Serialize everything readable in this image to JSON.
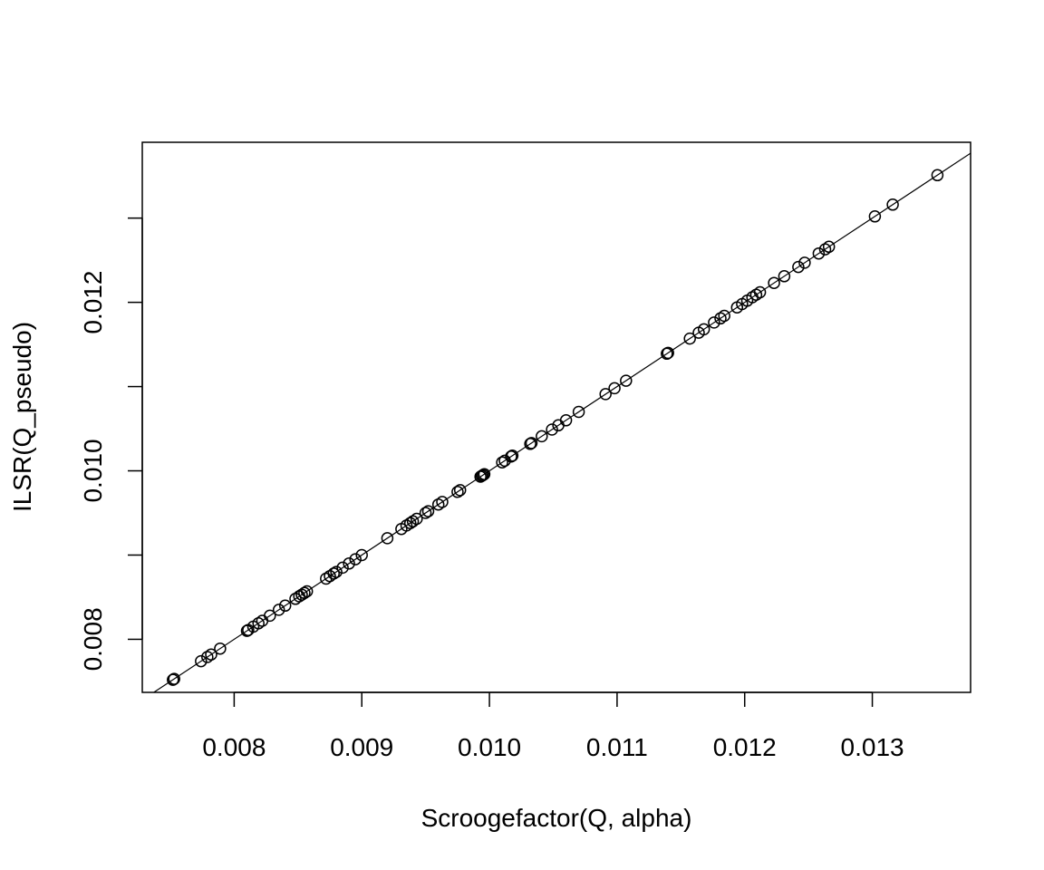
{
  "chart_data": {
    "type": "scatter",
    "title": "",
    "xlabel": "Scroogefactor(Q, alpha)",
    "ylabel": "ILSR(Q_pseudo)",
    "xlim": [
      0.00728,
      0.01377
    ],
    "ylim": [
      0.00737,
      0.0139
    ],
    "xticks": [
      0.008,
      0.009,
      0.01,
      0.011,
      0.012,
      0.013
    ],
    "xtick_labels": [
      "0.008",
      "0.009",
      "0.010",
      "0.011",
      "0.012",
      "0.013"
    ],
    "yticks": [
      0.008,
      0.009,
      0.01,
      0.011,
      0.012,
      0.013
    ],
    "ytick_labels": [
      "0.008",
      "",
      "0.010",
      "",
      "0.012",
      ""
    ],
    "reference_line": "y = x",
    "grid": false,
    "legend": "none",
    "marker": "open-circle",
    "points": [
      [
        0.00752,
        0.00752
      ],
      [
        0.00753,
        0.00753
      ],
      [
        0.00774,
        0.00774
      ],
      [
        0.00779,
        0.00779
      ],
      [
        0.00782,
        0.00782
      ],
      [
        0.00789,
        0.00789
      ],
      [
        0.0081,
        0.0081
      ],
      [
        0.00811,
        0.00811
      ],
      [
        0.00815,
        0.00815
      ],
      [
        0.00819,
        0.00819
      ],
      [
        0.00822,
        0.00822
      ],
      [
        0.00828,
        0.00828
      ],
      [
        0.00835,
        0.00835
      ],
      [
        0.0084,
        0.0084
      ],
      [
        0.00848,
        0.00848
      ],
      [
        0.00851,
        0.00851
      ],
      [
        0.00853,
        0.00853
      ],
      [
        0.00855,
        0.00855
      ],
      [
        0.00857,
        0.00857
      ],
      [
        0.00872,
        0.00872
      ],
      [
        0.00875,
        0.00875
      ],
      [
        0.00878,
        0.00878
      ],
      [
        0.0088,
        0.0088
      ],
      [
        0.00885,
        0.00885
      ],
      [
        0.0089,
        0.0089
      ],
      [
        0.00895,
        0.00895
      ],
      [
        0.009,
        0.009
      ],
      [
        0.0092,
        0.0092
      ],
      [
        0.00931,
        0.00931
      ],
      [
        0.00935,
        0.00935
      ],
      [
        0.00938,
        0.00938
      ],
      [
        0.0094,
        0.0094
      ],
      [
        0.00943,
        0.00943
      ],
      [
        0.0095,
        0.0095
      ],
      [
        0.00952,
        0.00952
      ],
      [
        0.0096,
        0.0096
      ],
      [
        0.00963,
        0.00963
      ],
      [
        0.00975,
        0.00975
      ],
      [
        0.00977,
        0.00977
      ],
      [
        0.00993,
        0.00993
      ],
      [
        0.00994,
        0.00994
      ],
      [
        0.00995,
        0.00995
      ],
      [
        0.00996,
        0.00996
      ],
      [
        0.0101,
        0.0101
      ],
      [
        0.01012,
        0.01012
      ],
      [
        0.01017,
        0.01017
      ],
      [
        0.01018,
        0.01018
      ],
      [
        0.01032,
        0.01032
      ],
      [
        0.01033,
        0.01033
      ],
      [
        0.01041,
        0.01041
      ],
      [
        0.01049,
        0.01049
      ],
      [
        0.01054,
        0.01054
      ],
      [
        0.0106,
        0.0106
      ],
      [
        0.0107,
        0.0107
      ],
      [
        0.01091,
        0.01091
      ],
      [
        0.01098,
        0.01098
      ],
      [
        0.01107,
        0.01107
      ],
      [
        0.01139,
        0.01139
      ],
      [
        0.0114,
        0.0114
      ],
      [
        0.01157,
        0.01157
      ],
      [
        0.01164,
        0.01164
      ],
      [
        0.01168,
        0.01168
      ],
      [
        0.01176,
        0.01176
      ],
      [
        0.01181,
        0.01181
      ],
      [
        0.01184,
        0.01184
      ],
      [
        0.01194,
        0.01194
      ],
      [
        0.01198,
        0.01198
      ],
      [
        0.01202,
        0.01202
      ],
      [
        0.01206,
        0.01206
      ],
      [
        0.01209,
        0.01209
      ],
      [
        0.01212,
        0.01212
      ],
      [
        0.01223,
        0.01223
      ],
      [
        0.01231,
        0.01231
      ],
      [
        0.01242,
        0.01242
      ],
      [
        0.01247,
        0.01247
      ],
      [
        0.01258,
        0.01258
      ],
      [
        0.01263,
        0.01263
      ],
      [
        0.01266,
        0.01266
      ],
      [
        0.01302,
        0.01302
      ],
      [
        0.01316,
        0.01316
      ],
      [
        0.01351,
        0.01351
      ]
    ]
  }
}
